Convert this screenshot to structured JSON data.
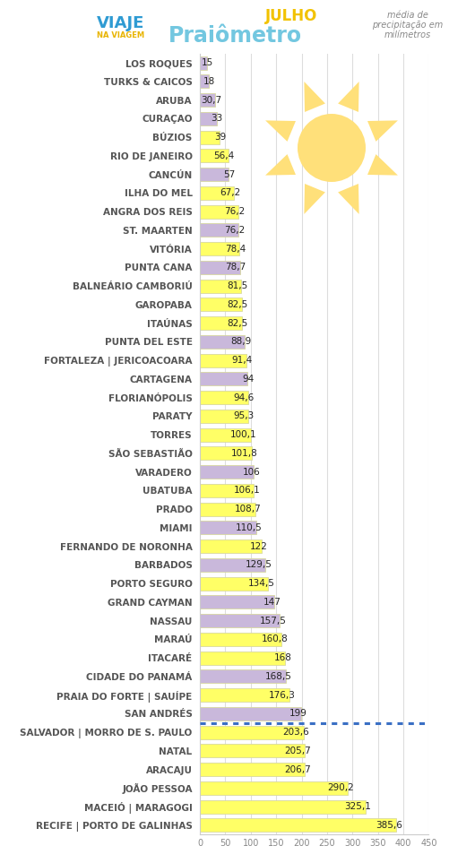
{
  "chart_data": {
    "type": "bar",
    "orientation": "horizontal",
    "title": "Praiômetro",
    "subtitle": "JULHO",
    "annotations": [
      "VIAJE",
      "NA VIAGEM",
      "média de\nprecipitação em\nmilímetros"
    ],
    "categories": [
      "LOS ROQUES",
      "TURKS & CAICOS",
      "ARUBA",
      "CURAÇAO",
      "BÚZIOS",
      "RIO DE JANEIRO",
      "CANCÚN",
      "ILHA DO MEL",
      "ANGRA DOS REIS",
      "ST. MAARTEN",
      "VITÓRIA",
      "PUNTA CANA",
      "BALNEÁRIO CAMBORIÚ",
      "GAROPABA",
      "ITAÚNAS",
      "PUNTA DEL ESTE",
      "FORTALEZA | JERICOACOARA",
      "CARTAGENA",
      "FLORIANÓPOLIS",
      "PARATY",
      "TORRES",
      "SÃO SEBASTIÃO",
      "VARADERO",
      "UBATUBA",
      "PRADO",
      "MIAMI",
      "FERNANDO DE NORONHA",
      "BARBADOS",
      "PORTO SEGURO",
      "GRAND CAYMAN",
      "NASSAU",
      "MARAÚ",
      "ITACARÉ",
      "CIDADE DO PANAMÁ",
      "PRAIA DO FORTE | SAUÍPE",
      "SAN ANDRÉS",
      "SALVADOR | MORRO DE S. PAULO",
      "NATAL",
      "ARACAJU",
      "JOÃO PESSOA",
      "MACEIÓ | MARAGOGI",
      "RECIFE | PORTO DE GALINHAS"
    ],
    "values": [
      15,
      18,
      30.7,
      33,
      39,
      56.4,
      57,
      67.2,
      76.2,
      76.2,
      78.4,
      78.7,
      81.5,
      82.5,
      82.5,
      88.9,
      91.4,
      94,
      94.6,
      95.3,
      100.1,
      101.8,
      106,
      106.1,
      108.7,
      110.5,
      122,
      129.5,
      134.5,
      147,
      157.5,
      160.8,
      168,
      168.5,
      176.3,
      199,
      203.6,
      205.7,
      206.7,
      290.2,
      325.1,
      385.6
    ],
    "value_labels": [
      "15",
      "18",
      "30,7",
      "33",
      "39",
      "56,4",
      "57",
      "67,2",
      "76,2",
      "76,2",
      "78,4",
      "78,7",
      "81,5",
      "82,5",
      "82,5",
      "88,9",
      "91,4",
      "94",
      "94,6",
      "95,3",
      "100,1",
      "101,8",
      "106",
      "106,1",
      "108,7",
      "110,5",
      "122",
      "129,5",
      "134,5",
      "147",
      "157,5",
      "160,8",
      "168",
      "168,5",
      "176,3",
      "199",
      "203,6",
      "205,7",
      "206,7",
      "290,2",
      "325,1",
      "385,6"
    ],
    "colors": [
      "#c9b8db",
      "#c9b8db",
      "#c9b8db",
      "#c9b8db",
      "#ffff66",
      "#ffff66",
      "#c9b8db",
      "#ffff66",
      "#ffff66",
      "#c9b8db",
      "#ffff66",
      "#c9b8db",
      "#ffff66",
      "#ffff66",
      "#ffff66",
      "#c9b8db",
      "#ffff66",
      "#c9b8db",
      "#ffff66",
      "#ffff66",
      "#ffff66",
      "#ffff66",
      "#c9b8db",
      "#ffff66",
      "#ffff66",
      "#c9b8db",
      "#ffff66",
      "#c9b8db",
      "#ffff66",
      "#c9b8db",
      "#c9b8db",
      "#ffff66",
      "#ffff66",
      "#c9b8db",
      "#ffff66",
      "#c9b8db",
      "#ffff66",
      "#ffff66",
      "#ffff66",
      "#ffff66",
      "#ffff66",
      "#ffff66"
    ],
    "xlim": [
      0,
      450
    ],
    "xticks": [
      0,
      50,
      100,
      150,
      200,
      250,
      300,
      350,
      400,
      450
    ],
    "grid": true,
    "data_labels": true
  }
}
